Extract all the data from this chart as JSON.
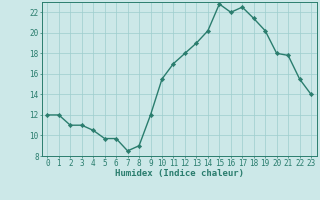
{
  "x": [
    0,
    1,
    2,
    3,
    4,
    5,
    6,
    7,
    8,
    9,
    10,
    11,
    12,
    13,
    14,
    15,
    16,
    17,
    18,
    19,
    20,
    21,
    22,
    23
  ],
  "y": [
    12.0,
    12.0,
    11.0,
    11.0,
    10.5,
    9.7,
    9.7,
    8.5,
    9.0,
    12.0,
    15.5,
    17.0,
    18.0,
    19.0,
    20.2,
    22.8,
    22.0,
    22.5,
    21.4,
    20.2,
    18.0,
    17.8,
    15.5,
    14.0
  ],
  "line_color": "#2a7d6e",
  "marker": "D",
  "marker_size": 2.2,
  "bg_color": "#cce8e8",
  "grid_color": "#9ecece",
  "xlabel": "Humidex (Indice chaleur)",
  "xlim": [
    -0.5,
    23.5
  ],
  "ylim": [
    8,
    23
  ],
  "xticks": [
    0,
    1,
    2,
    3,
    4,
    5,
    6,
    7,
    8,
    9,
    10,
    11,
    12,
    13,
    14,
    15,
    16,
    17,
    18,
    19,
    20,
    21,
    22,
    23
  ],
  "yticks": [
    8,
    10,
    12,
    14,
    16,
    18,
    20,
    22
  ],
  "tick_color": "#2a7d6e",
  "label_color": "#2a7d6e",
  "axis_color": "#2a7d6e",
  "xlabel_fontsize": 6.5,
  "tick_fontsize": 5.5,
  "linewidth": 1.0
}
